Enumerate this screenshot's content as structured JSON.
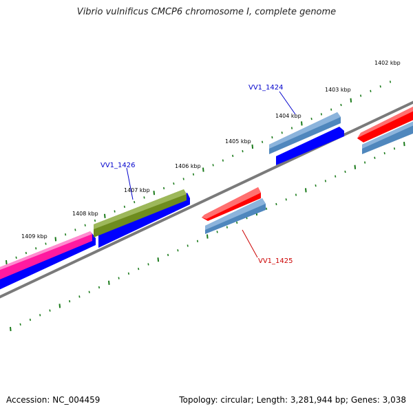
{
  "title": "Vibrio vulnificus CMCP6 chromosome I, complete genome",
  "footer": {
    "accession": "Accession: NC_004459",
    "summary": "Topology: circular; Length: 3,281,944 bp; Genes: 3,038"
  },
  "colors": {
    "backbone": "#7a7a7a",
    "tick": "#1a7a1a",
    "gene_blue": "#0000ff",
    "gene_steel": "#4f87bd",
    "gene_red": "#ff0000",
    "gene_pink": "#ff1aa0",
    "gene_olive": "#6e8c1e",
    "label_blue": "#0000cc",
    "label_red": "#cc0000"
  },
  "ticks": [
    "1402 kbp",
    "1403 kbp",
    "1404 kbp",
    "1405 kbp",
    "1406 kbp",
    "1407 kbp",
    "1408 kbp",
    "1409 kbp"
  ],
  "genes": [
    {
      "name": "VV1_1424",
      "strand": "forward",
      "color": "steel",
      "labeled": true
    },
    {
      "name": "VV1_1425",
      "strand": "reverse",
      "color": "steel",
      "labeled": true
    },
    {
      "name": "VV1_1426",
      "strand": "forward",
      "color": "olive",
      "labeled": true
    },
    {
      "name": "",
      "strand": "forward",
      "color": "pink",
      "labeled": false
    },
    {
      "name": "",
      "strand": "reverse",
      "color": "red",
      "labeled": false
    }
  ]
}
